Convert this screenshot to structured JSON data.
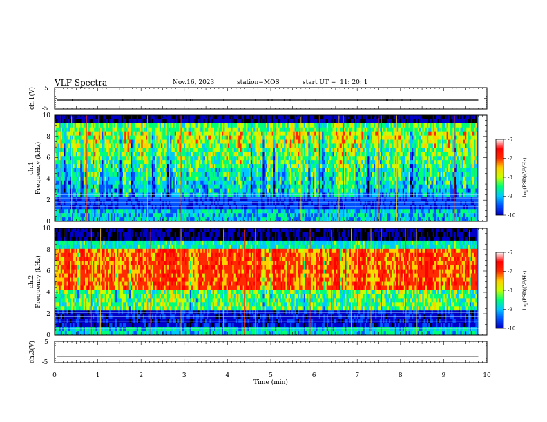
{
  "header": {
    "title": "VLF Spectra",
    "date": "Nov.16, 2023",
    "station": "station=MOS",
    "start": "start UT =  11: 20: 1"
  },
  "colors": {
    "spectrum_scale": [
      "#000000",
      "#0000c8",
      "#0050ff",
      "#00c8ff",
      "#00ff78",
      "#c8ff00",
      "#ffd000",
      "#ff2a00",
      "#ff0000",
      "#ffffff"
    ]
  },
  "chart_data": [
    {
      "type": "line",
      "panel": "ch1-voltage",
      "ylabel": "ch.1(V)",
      "ylim": [
        -5,
        5
      ],
      "yticks": [
        "5",
        "-5"
      ],
      "series": [
        {
          "values": [
            -0.8
          ]
        }
      ]
    },
    {
      "type": "heatmap",
      "panel": "ch1-spectrogram",
      "ylabel": "ch.1 Frequency (kHz)",
      "ylim": [
        0,
        10
      ],
      "yticks": [
        "0",
        "2",
        "4",
        "6",
        "8",
        "10"
      ],
      "xlim": [
        0,
        9.8
      ],
      "colorbar": {
        "label": "log(PSD)(V²/Hz)",
        "range": [
          -10,
          -6
        ],
        "ticks": [
          "-6",
          "-7",
          "-8",
          "-9",
          "-10"
        ]
      }
    },
    {
      "type": "heatmap",
      "panel": "ch2-spectrogram",
      "ylabel": "ch.2 Frequency (kHz)",
      "ylim": [
        0,
        10
      ],
      "yticks": [
        "0",
        "2",
        "4",
        "6",
        "8",
        "10"
      ],
      "xlim": [
        0,
        9.8
      ],
      "colorbar": {
        "label": "log(PSD)(V²/Hz)",
        "range": [
          -10,
          -6
        ],
        "ticks": [
          "-6",
          "-7",
          "-8",
          "-9",
          "-10"
        ]
      }
    },
    {
      "type": "line",
      "panel": "ch3-voltage",
      "ylabel": "ch.3(V)",
      "ylim": [
        -5,
        5
      ],
      "yticks": [
        "5",
        "-5"
      ],
      "xlabel": "Time (min)",
      "xlim": [
        0,
        10
      ],
      "xticks": [
        "0",
        "1",
        "2",
        "3",
        "4",
        "5",
        "6",
        "7",
        "8",
        "9",
        "10"
      ],
      "series": [
        {
          "values": [
            -2.0
          ]
        }
      ]
    }
  ]
}
